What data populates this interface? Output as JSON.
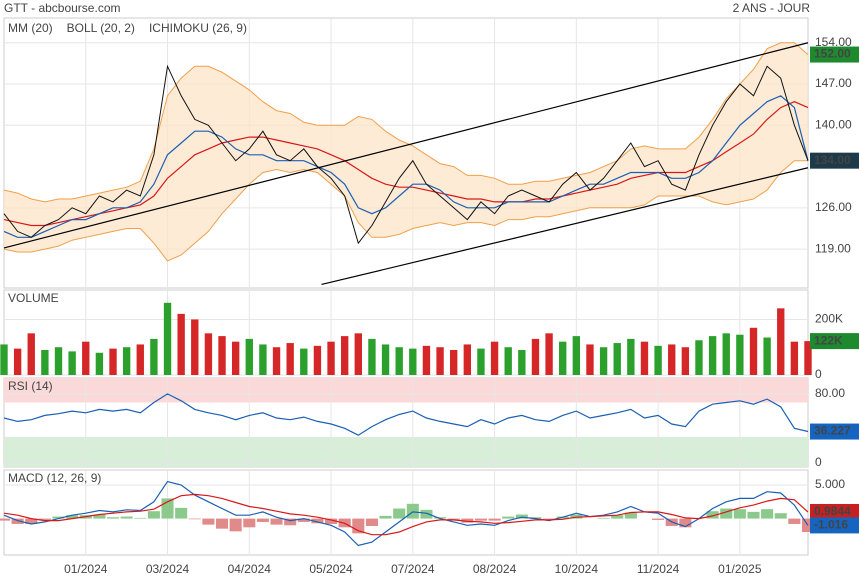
{
  "header": {
    "title": "GTT - abcbourse.com",
    "period": "2 ANS - JOUR"
  },
  "chart_data": [
    {
      "type": "price",
      "categories": [
        null,
        null,
        null,
        null,
        null,
        null,
        "01/2024",
        null,
        null,
        null,
        null,
        null,
        "03/2024",
        null,
        null,
        null,
        null,
        null,
        "04/2024",
        null,
        null,
        null,
        null,
        null,
        "05/2024",
        null,
        null,
        null,
        null,
        null,
        "07/2024",
        null,
        null,
        null,
        null,
        null,
        "08/2024",
        null,
        null,
        null,
        null,
        null,
        "10/2024",
        null,
        null,
        null,
        null,
        null,
        "11/2024",
        null,
        null,
        null,
        null,
        null,
        "01/2025",
        null,
        null,
        null,
        null,
        null
      ],
      "ylim": [
        112.4,
        158.2
      ],
      "yticks": [
        {
          "value": 119,
          "label": "119.00"
        },
        {
          "value": 126,
          "label": "126.00"
        },
        {
          "value": 140,
          "label": "140.00"
        },
        {
          "value": 147,
          "label": "147.00"
        },
        {
          "value": 154,
          "label": "154.00"
        }
      ],
      "grid": true,
      "values": [
        125,
        122,
        121,
        123,
        124,
        126,
        125,
        128,
        127,
        129,
        128,
        135,
        150,
        145,
        141,
        140,
        137,
        134,
        136,
        139,
        135,
        134,
        136,
        133,
        131,
        128,
        120,
        123,
        127,
        131,
        134,
        130,
        128,
        126,
        124,
        127,
        125,
        128,
        129,
        128,
        127,
        130,
        132,
        129,
        131,
        134,
        137,
        133,
        134,
        130,
        129,
        135,
        140,
        144,
        147,
        145,
        150,
        148,
        140,
        134
      ],
      "color": "#111111",
      "series": [
        {
          "name": "MM (20)",
          "color": "#d81818",
          "values": [
            124,
            123.5,
            123,
            123,
            123.5,
            124,
            124.5,
            125,
            125.5,
            126,
            126.5,
            128,
            131,
            133,
            135,
            136,
            137,
            137.5,
            138,
            138,
            137.5,
            137,
            136.5,
            136,
            135,
            134,
            132.5,
            131,
            130,
            129.5,
            129.5,
            129,
            128.5,
            128,
            127.5,
            127.5,
            127,
            127,
            127,
            127.5,
            127.5,
            128,
            128.5,
            129,
            129.5,
            130,
            131,
            131.5,
            132,
            132,
            132,
            133,
            134,
            135.5,
            137,
            138.5,
            141,
            143,
            144,
            143
          ]
        },
        {
          "name": "BOLL (20, 2)",
          "color": "#f0a04a",
          "fill": "#fde3c4",
          "upper": [
            129,
            128.5,
            127.5,
            127,
            127.5,
            127.5,
            128,
            128.5,
            129,
            129.5,
            130.5,
            136,
            145,
            148,
            150,
            150,
            149,
            147.5,
            146,
            144,
            142.5,
            142,
            140.5,
            140,
            140,
            140,
            141.5,
            141,
            139,
            137.5,
            136.5,
            135,
            133.5,
            133,
            131.5,
            131.5,
            131,
            130,
            130,
            130.5,
            130.5,
            131,
            131.5,
            132,
            133,
            134,
            136,
            136.5,
            136,
            136,
            136,
            138,
            141,
            144.5,
            147,
            149.5,
            153,
            154,
            154,
            152
          ],
          "lower": [
            119,
            118.5,
            118.5,
            119,
            119.5,
            120.5,
            121,
            121.5,
            122,
            122.5,
            122.5,
            120,
            117,
            118,
            120,
            122,
            125,
            127.5,
            130,
            132,
            132.5,
            132,
            132.5,
            132,
            130,
            128,
            123.5,
            121,
            121,
            121.5,
            122.5,
            123,
            123.5,
            123,
            123.5,
            123.5,
            123,
            124,
            124,
            124.5,
            124.5,
            125,
            125.5,
            126,
            126,
            126,
            126,
            126.5,
            128,
            128,
            128,
            128,
            127,
            126.5,
            127,
            127.5,
            129,
            132,
            134,
            134
          ]
        },
        {
          "name": "ICHIMOKU (26, 9)",
          "color": "#1a5fb4",
          "values": [
            122,
            121,
            121,
            122,
            123,
            124,
            124,
            125,
            126,
            126,
            127,
            130,
            135,
            137,
            139,
            139,
            138,
            136,
            135,
            135,
            134,
            134,
            134,
            133,
            132,
            130,
            126,
            125,
            126,
            128,
            130,
            130,
            129,
            127,
            126,
            126,
            126,
            127,
            127,
            127,
            127,
            128,
            129,
            130,
            130,
            131,
            132,
            132,
            132,
            131,
            131,
            132,
            134,
            137,
            140,
            142,
            144,
            145,
            143,
            134
          ]
        }
      ],
      "trendlines": [
        {
          "x": [
            0,
            59
          ],
          "values": [
            119.2,
            154
          ]
        },
        {
          "x": [
            23.3,
            59
          ],
          "values": [
            113,
            132.8
          ]
        }
      ],
      "markers": [
        {
          "value": 152,
          "label": "152.00",
          "color": "#1e8a2e"
        },
        {
          "value": 134,
          "label": "134.00",
          "color": "#1d3a4a"
        }
      ]
    },
    {
      "type": "volume",
      "title": "VOLUME",
      "title_color": "#2ca02c",
      "ylim": [
        0,
        306000
      ],
      "yticks": [
        {
          "value": 0,
          "label": "0"
        },
        {
          "value": 200000,
          "label": "200K"
        }
      ],
      "grid": true,
      "up_color": "#2ca02c",
      "down_color": "#d62728",
      "values": [
        110000,
        95000,
        150000,
        90000,
        100000,
        85000,
        120000,
        80000,
        95000,
        100000,
        110000,
        130000,
        260000,
        220000,
        200000,
        150000,
        140000,
        120000,
        130000,
        110000,
        100000,
        115000,
        95000,
        105000,
        120000,
        140000,
        150000,
        130000,
        110000,
        100000,
        95000,
        105000,
        100000,
        90000,
        110000,
        95000,
        120000,
        100000,
        90000,
        130000,
        150000,
        120000,
        140000,
        110000,
        100000,
        115000,
        130000,
        120000,
        105000,
        110000,
        100000,
        125000,
        140000,
        150000,
        145000,
        170000,
        135000,
        240000,
        120000,
        122000
      ],
      "markers": [
        {
          "value": 122000,
          "label": "122K",
          "color": "#1e8a2e"
        }
      ]
    },
    {
      "type": "line",
      "title": "RSI (14)",
      "title_color": "#1a5fb4",
      "ylim": [
        -5,
        98.5
      ],
      "yticks": [
        0,
        {
          "value": 80,
          "label": "80.00"
        }
      ],
      "grid": true,
      "zones": [
        {
          "from": 70,
          "to": 98.5,
          "color": "#fcd9d9"
        },
        {
          "from": -5,
          "to": 30,
          "color": "#d9eed9"
        }
      ],
      "series": [
        {
          "color": "#1a5fb4",
          "values": [
            52,
            48,
            50,
            55,
            57,
            60,
            58,
            62,
            60,
            62,
            58,
            70,
            80,
            72,
            62,
            58,
            55,
            50,
            55,
            58,
            52,
            50,
            53,
            48,
            45,
            40,
            32,
            42,
            50,
            56,
            60,
            52,
            48,
            45,
            42,
            50,
            45,
            52,
            55,
            50,
            48,
            55,
            60,
            52,
            55,
            58,
            62,
            52,
            55,
            45,
            42,
            60,
            68,
            70,
            72,
            68,
            74,
            65,
            40,
            36.227
          ]
        }
      ],
      "markers": [
        {
          "value": 36.227,
          "label": "36.227",
          "color": "#1565c0"
        }
      ]
    },
    {
      "type": "line",
      "title": "MACD (12, 26, 9)",
      "title_color": "#1a5fb4",
      "ylim": [
        -5.42,
        7.23
      ],
      "yticks": [
        {
          "value": 5,
          "label": "5.000"
        }
      ],
      "grid": true,
      "series": [
        {
          "color": "#1a5fb4",
          "values": [
            0.5,
            -0.3,
            -0.8,
            -0.5,
            0,
            0.5,
            0.8,
            1.2,
            1.0,
            1.3,
            1.2,
            2.5,
            5.5,
            5,
            3.5,
            2.5,
            1.5,
            0.5,
            0.5,
            1,
            0.2,
            -0.3,
            0,
            -0.5,
            -1,
            -2,
            -4,
            -3.5,
            -2,
            -0.5,
            1,
            0.8,
            0,
            -0.5,
            -1,
            -0.8,
            -1,
            -0.3,
            0.2,
            0,
            -0.3,
            0.2,
            0.8,
            0.3,
            0.5,
            1,
            1.8,
            1,
            0.8,
            -0.5,
            -1.2,
            0,
            1.5,
            2.5,
            3,
            3,
            4,
            3.8,
            2,
            -1.016
          ]
        },
        {
          "color": "#d81818",
          "values": [
            0.8,
            0.5,
            0,
            -0.3,
            -0.3,
            0,
            0.3,
            0.6,
            0.8,
            1,
            1.1,
            1.4,
            2.5,
            3.4,
            3.6,
            3.4,
            3,
            2.4,
            1.8,
            1.5,
            1.1,
            0.7,
            0.5,
            0.2,
            -0.2,
            -0.7,
            -1.8,
            -2.4,
            -2.4,
            -2,
            -1.2,
            -0.5,
            -0.2,
            -0.2,
            -0.4,
            -0.5,
            -0.7,
            -0.6,
            -0.4,
            -0.2,
            -0.2,
            -0.1,
            0.2,
            0.3,
            0.4,
            0.5,
            0.9,
            1,
            1,
            0.6,
            0.1,
            0,
            0.4,
            1,
            1.6,
            2,
            2.6,
            3,
            2.8,
            0.9844
          ]
        }
      ],
      "histogram": {
        "up_color": "#8cc98c",
        "down_color": "#e08a8a",
        "values": [
          -0.3,
          -0.8,
          -0.8,
          -0.2,
          0.3,
          0.5,
          0.5,
          0.6,
          0.2,
          0.3,
          0.1,
          1.1,
          3,
          1.6,
          -0.1,
          -0.9,
          -1.5,
          -1.9,
          -1.3,
          -0.5,
          -0.9,
          -1,
          -0.5,
          -0.7,
          -0.8,
          -1.3,
          -2.2,
          -1.1,
          0.4,
          1.5,
          2.2,
          1.3,
          0.2,
          -0.3,
          -0.6,
          -0.3,
          -0.3,
          0.3,
          0.6,
          0.2,
          -0.1,
          0.3,
          0.6,
          0,
          0.1,
          0.5,
          0.9,
          0,
          -0.2,
          -1.1,
          -1.3,
          0,
          1.1,
          1.5,
          1.4,
          1,
          1.4,
          0.8,
          -0.8,
          -2.0
        ]
      },
      "markers": [
        {
          "value": 0.9844,
          "label": "0.9844",
          "color": "#c62020"
        },
        {
          "value": -1.016,
          "label": "-1.016",
          "color": "#1565c0"
        }
      ]
    }
  ]
}
